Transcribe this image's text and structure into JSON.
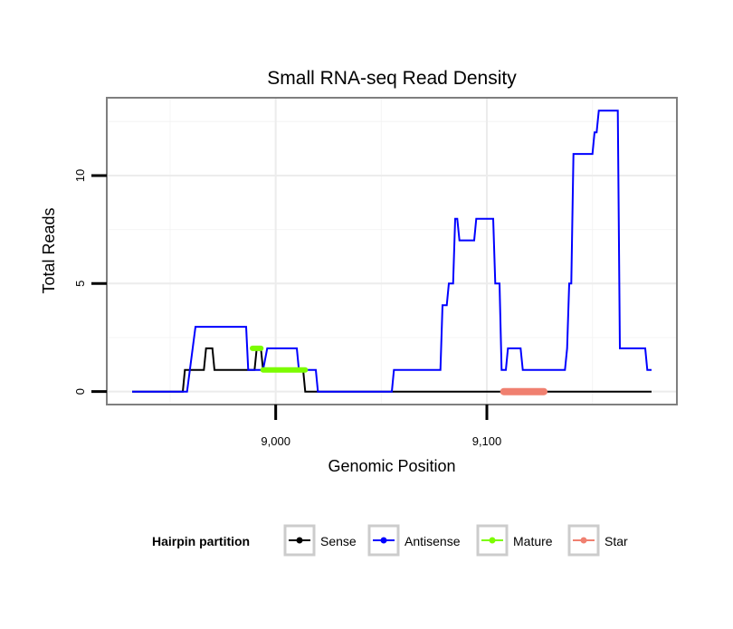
{
  "chart_data": {
    "type": "line",
    "title": "Small RNA-seq Read Density",
    "xlabel": "Genomic Position",
    "ylabel": "Total Reads",
    "xlim": [
      8920,
      9190
    ],
    "ylim": [
      -0.6,
      13.6
    ],
    "x_ticks": [
      {
        "value": 9000,
        "label": "9,000"
      },
      {
        "value": 9100,
        "label": "9,100"
      }
    ],
    "y_ticks": [
      {
        "value": 0,
        "label": "0"
      },
      {
        "value": 5,
        "label": "5"
      },
      {
        "value": 10,
        "label": "10"
      }
    ],
    "minor_x": [
      8950,
      9050,
      9150
    ],
    "minor_y": [
      2.5,
      7.5,
      12.5
    ],
    "legend": {
      "title": "Hairpin partition",
      "placement": "bottom",
      "entries": [
        {
          "label": "Sense",
          "color": "#000000"
        },
        {
          "label": "Antisense",
          "color": "#0000ff"
        },
        {
          "label": "Mature",
          "color": "#7cfc00"
        },
        {
          "label": "Star",
          "color": "#f08070"
        }
      ]
    },
    "series": [
      {
        "name": "Sense",
        "color": "#000000",
        "points": [
          [
            8932,
            0
          ],
          [
            8956,
            0
          ],
          [
            8957,
            1
          ],
          [
            8966,
            1
          ],
          [
            8967,
            2
          ],
          [
            8970,
            2
          ],
          [
            8971,
            1
          ],
          [
            8990,
            1
          ],
          [
            8991,
            2
          ],
          [
            8993,
            2
          ],
          [
            8994,
            1
          ],
          [
            9013,
            1
          ],
          [
            9014,
            0
          ],
          [
            9178,
            0
          ]
        ]
      },
      {
        "name": "Antisense",
        "color": "#0000ff",
        "points": [
          [
            8932,
            0
          ],
          [
            8958,
            0
          ],
          [
            8962,
            3
          ],
          [
            8986,
            3
          ],
          [
            8987,
            1
          ],
          [
            8994,
            1
          ],
          [
            8996,
            2
          ],
          [
            9010,
            2
          ],
          [
            9011,
            1
          ],
          [
            9019,
            1
          ],
          [
            9020,
            0
          ],
          [
            9055,
            0
          ],
          [
            9056,
            1
          ],
          [
            9078,
            1
          ],
          [
            9079,
            4
          ],
          [
            9081,
            4
          ],
          [
            9082,
            5
          ],
          [
            9084,
            5
          ],
          [
            9085,
            8
          ],
          [
            9086,
            8
          ],
          [
            9087,
            7
          ],
          [
            9094,
            7
          ],
          [
            9095,
            8
          ],
          [
            9103,
            8
          ],
          [
            9104,
            5
          ],
          [
            9106,
            5
          ],
          [
            9107,
            1
          ],
          [
            9109,
            1
          ],
          [
            9110,
            2
          ],
          [
            9116,
            2
          ],
          [
            9117,
            1
          ],
          [
            9137,
            1
          ],
          [
            9138,
            2
          ],
          [
            9139,
            5
          ],
          [
            9140,
            5
          ],
          [
            9141,
            11
          ],
          [
            9150,
            11
          ],
          [
            9151,
            12
          ],
          [
            9152,
            12
          ],
          [
            9153,
            13
          ],
          [
            9162,
            13
          ],
          [
            9163,
            2
          ],
          [
            9175,
            2
          ],
          [
            9176,
            1
          ],
          [
            9178,
            1
          ]
        ]
      },
      {
        "name": "Mature",
        "color": "#7cfc00",
        "points": [
          [
            8989,
            2
          ],
          [
            8993,
            2
          ]
        ]
      },
      {
        "name": "Mature",
        "color": "#7cfc00",
        "points": [
          [
            8994,
            1
          ],
          [
            9014,
            1
          ]
        ]
      },
      {
        "name": "Star",
        "color": "#f08070",
        "points": [
          [
            9108,
            0
          ],
          [
            9127,
            0
          ]
        ]
      }
    ]
  }
}
